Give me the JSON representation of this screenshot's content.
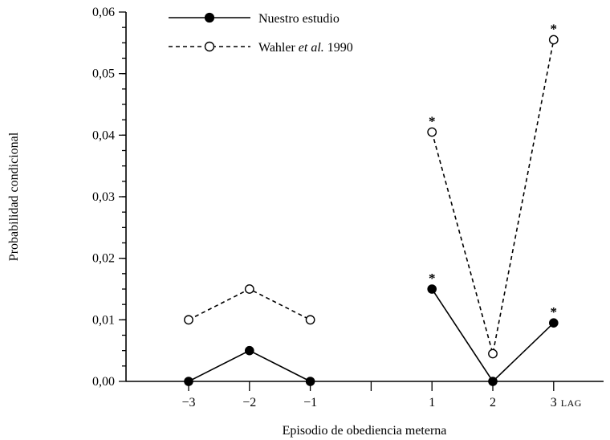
{
  "chart_data": {
    "type": "line",
    "xlabel": "Episodio de obediencia meterna",
    "ylabel": "Probabilidad condicional",
    "x_categories": [
      "-3",
      "-2",
      "-1",
      "",
      "1",
      "2",
      "3"
    ],
    "x_tick_labels": [
      "−3",
      "−2",
      "−1",
      "1",
      "2",
      "3"
    ],
    "x_axis_suffix": "LAG",
    "ylim": [
      0,
      0.06
    ],
    "yticks": [
      "0,00",
      "0,01",
      "0,02",
      "0,03",
      "0,04",
      "0,05",
      "0,06"
    ],
    "significance_marker": "*",
    "legend_placement": "top-center",
    "series": [
      {
        "name": "Nuestro estudio",
        "marker": "filled-circle",
        "line": "solid",
        "segments": [
          {
            "x": [
              "-3",
              "-2",
              "-1"
            ],
            "values": [
              0.0,
              0.005,
              0.0
            ]
          },
          {
            "x": [
              "1",
              "2",
              "3"
            ],
            "values": [
              0.015,
              0.0,
              0.0095
            ]
          }
        ],
        "significant_at": [
          "1",
          "3"
        ]
      },
      {
        "name_parts": [
          "Wahler ",
          "et al.",
          " 1990"
        ],
        "marker": "open-circle",
        "line": "dashed",
        "segments": [
          {
            "x": [
              "-3",
              "-2",
              "-1"
            ],
            "values": [
              0.01,
              0.015,
              0.01
            ]
          },
          {
            "x": [
              "1",
              "2",
              "3"
            ],
            "values": [
              0.0405,
              0.0045,
              0.0555
            ]
          }
        ],
        "significant_at": [
          "1",
          "3"
        ]
      }
    ]
  }
}
